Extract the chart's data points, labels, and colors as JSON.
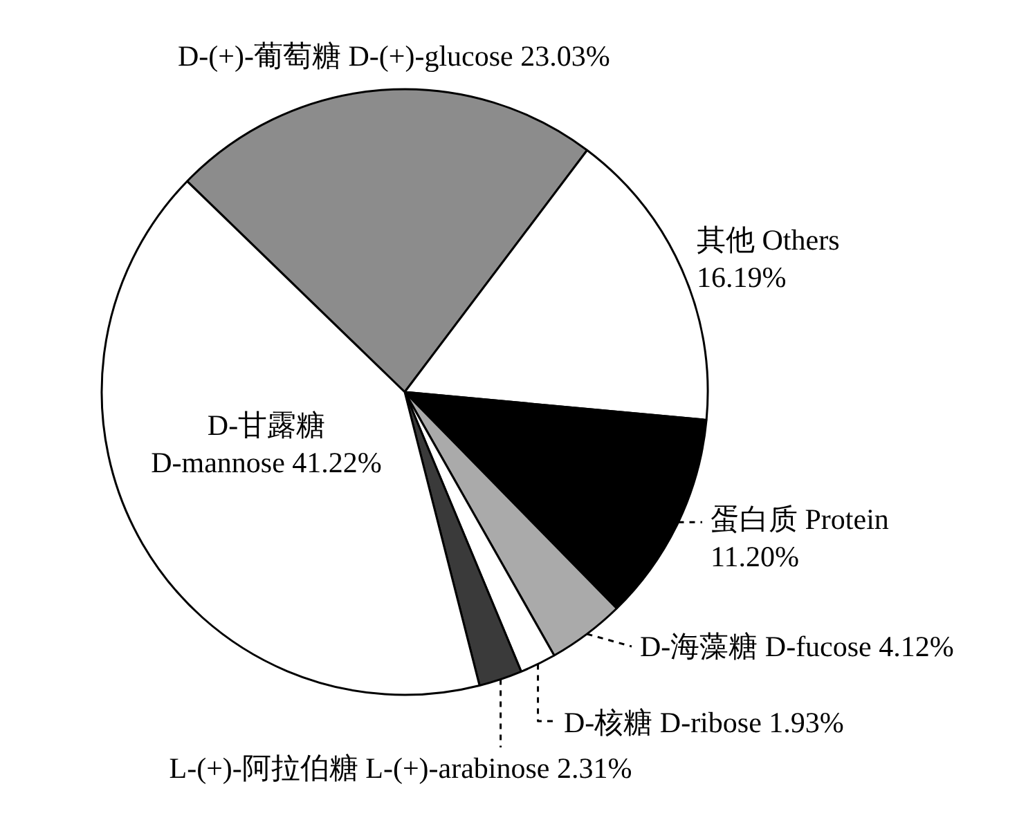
{
  "chart_data": {
    "type": "pie",
    "categories": [
      "D-(+)-葡萄糖 D-(+)-glucose",
      "其他 Others",
      "蛋白质 Protein",
      "D-海藻糖 D-fucose",
      "D-核糖 D-ribose",
      "L-(+)-阿拉伯糖 L-(+)-arabinose",
      "D-甘露糖 D-mannose"
    ],
    "values": [
      23.03,
      16.19,
      11.2,
      4.12,
      1.93,
      2.31,
      41.22
    ],
    "value_labels": [
      "23.03%",
      "16.19%",
      "11.20%",
      "4.12%",
      "1.93%",
      "2.31%",
      "41.22%"
    ],
    "colors": [
      "#8c8c8c",
      "#ffffff",
      "#000000",
      "#aaaaaa",
      "#ffffff",
      "#3a3a3a",
      "#ffffff"
    ]
  }
}
